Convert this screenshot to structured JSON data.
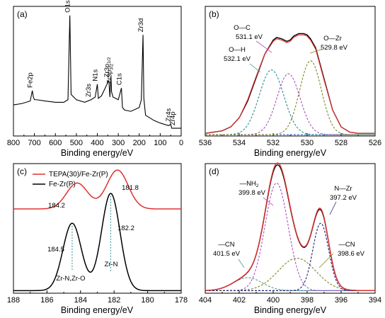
{
  "chart_data": [
    {
      "panel": "(a)",
      "type": "line",
      "xlabel": "Binding energy/eV",
      "ylabel": "",
      "xlim": [
        800,
        0
      ],
      "x_ticks": [
        800,
        700,
        600,
        500,
        400,
        300,
        200,
        100,
        0
      ],
      "series": [
        {
          "color": "#000000",
          "x": [
            800,
            760,
            720,
            710,
            705,
            700,
            690,
            650,
            600,
            560,
            540,
            531,
            525,
            500,
            460,
            430,
            410,
            400,
            395,
            380,
            345,
            340,
            335,
            332,
            325,
            300,
            285,
            280,
            270,
            240,
            200,
            190,
            182,
            178,
            170,
            130,
            100,
            60,
            50,
            45,
            40,
            35,
            30,
            25,
            20,
            15,
            10,
            5,
            0
          ],
          "y": [
            0.24,
            0.25,
            0.27,
            0.35,
            0.3,
            0.28,
            0.28,
            0.27,
            0.26,
            0.26,
            0.28,
            0.93,
            0.32,
            0.28,
            0.26,
            0.28,
            0.3,
            0.4,
            0.29,
            0.31,
            0.43,
            0.3,
            0.46,
            0.34,
            0.3,
            0.28,
            0.37,
            0.22,
            0.2,
            0.19,
            0.22,
            0.28,
            0.78,
            0.29,
            0.16,
            0.12,
            0.1,
            0.08,
            0.09,
            0.06,
            0.06,
            0.06,
            0.06,
            0.06,
            0.06,
            0.06,
            0.06,
            0.06,
            0.06
          ]
        }
      ],
      "annotations": [
        {
          "text": "Fe2p",
          "x": 710
        },
        {
          "text": "O1s",
          "x": 531
        },
        {
          "text": "Zr3s",
          "x": 432
        },
        {
          "text": "N1s",
          "x": 400
        },
        {
          "text": "Zr3p",
          "sub": "3/2",
          "x": 333
        },
        {
          "text": "Zr3p",
          "sub": "1/2",
          "x": 345
        },
        {
          "text": "C1s",
          "x": 285
        },
        {
          "text": "Zr3d",
          "x": 182
        },
        {
          "text": "Zr4s",
          "x": 51
        },
        {
          "text": "Zr4p",
          "x": 30
        }
      ]
    },
    {
      "panel": "(b)",
      "type": "line",
      "xlabel": "Binding energy/eV",
      "ylabel": "",
      "xlim": [
        536,
        526
      ],
      "x_ticks": [
        536,
        534,
        532,
        530,
        528,
        526
      ],
      "series": [
        {
          "role": "raw",
          "color": "#000000",
          "x": [
            536,
            535,
            534.5,
            534,
            533.5,
            533,
            532.5,
            532,
            531.8,
            531.5,
            531.2,
            531,
            530.8,
            530.5,
            530.2,
            530,
            529.8,
            529.5,
            529,
            528.5,
            528,
            527.5,
            527,
            526
          ],
          "y": [
            0.02,
            0.04,
            0.07,
            0.14,
            0.27,
            0.45,
            0.63,
            0.74,
            0.76,
            0.75,
            0.73,
            0.74,
            0.77,
            0.79,
            0.79,
            0.78,
            0.75,
            0.68,
            0.44,
            0.2,
            0.07,
            0.03,
            0.02,
            0.02
          ]
        },
        {
          "role": "fit",
          "color": "#e03030",
          "x": [
            536,
            535,
            534.5,
            534,
            533.5,
            533,
            532.5,
            532,
            531.8,
            531.5,
            531.2,
            531,
            530.8,
            530.5,
            530.2,
            530,
            529.8,
            529.5,
            529,
            528.5,
            528,
            527.5,
            527,
            526
          ],
          "y": [
            0.02,
            0.04,
            0.07,
            0.14,
            0.28,
            0.46,
            0.63,
            0.73,
            0.75,
            0.74,
            0.72,
            0.73,
            0.76,
            0.78,
            0.78,
            0.77,
            0.74,
            0.67,
            0.43,
            0.2,
            0.07,
            0.03,
            0.02,
            0.02
          ]
        },
        {
          "role": "O-H",
          "color": "#2a8f8f",
          "center": 532.1,
          "height": 0.5,
          "fwhm": 1.7
        },
        {
          "role": "O-C",
          "color": "#b050c0",
          "center": 531.1,
          "height": 0.47,
          "fwhm": 1.6
        },
        {
          "role": "O-Zr",
          "color": "#7a8a20",
          "center": 529.8,
          "height": 0.57,
          "fwhm": 1.5
        },
        {
          "role": "baseline",
          "color": "#2050c0",
          "y": 0.01
        }
      ],
      "annotations": [
        {
          "line1": "O—C",
          "line2": "531.1 eV"
        },
        {
          "line1": "O—H",
          "line2": "532.1 eV"
        },
        {
          "line1": "O—Zr",
          "line2": "529.8 eV"
        }
      ]
    },
    {
      "panel": "(c)",
      "type": "line",
      "xlabel": "Binding energy/eV",
      "ylabel": "",
      "xlim": [
        188,
        178
      ],
      "x_ticks": [
        188,
        186,
        184,
        182,
        180,
        178
      ],
      "legend": [
        {
          "label": "TEPA(30)/Fe-Zr(P)",
          "color": "#e03030"
        },
        {
          "label": "Fe-Zr(P)",
          "color": "#000000"
        }
      ],
      "series": [
        {
          "name": "TEPA(30)/Fe-Zr(P)",
          "color": "#e03030",
          "peaks": [
            {
              "center": 184.2,
              "height": 0.2,
              "fwhm": 1.5
            },
            {
              "center": 181.8,
              "height": 0.3,
              "fwhm": 1.5
            }
          ],
          "offset": 0.65
        },
        {
          "name": "Fe-Zr(P)",
          "color": "#000000",
          "peaks": [
            {
              "center": 184.5,
              "height": 0.52,
              "fwhm": 1.3
            },
            {
              "center": 182.2,
              "height": 0.75,
              "fwhm": 1.3
            }
          ],
          "offset": 0.02
        }
      ],
      "annotations": [
        {
          "text": "184.2"
        },
        {
          "text": "181.8"
        },
        {
          "text": "184.5"
        },
        {
          "text": "182.2"
        },
        {
          "text": "Zr-N,Zr-O"
        },
        {
          "text": "Zr-N"
        }
      ]
    },
    {
      "panel": "(d)",
      "type": "line",
      "xlabel": "Binding energy/eV",
      "ylabel": "",
      "xlim": [
        404,
        394
      ],
      "x_ticks": [
        404,
        402,
        400,
        398,
        396,
        394
      ],
      "series": [
        {
          "role": "-CN 401.5",
          "color": "#5a9a7a",
          "center": 401.5,
          "height": 0.1,
          "fwhm": 2.0
        },
        {
          "role": "-NH2",
          "color": "#b050c0",
          "center": 399.8,
          "height": 0.83,
          "fwhm": 1.6
        },
        {
          "role": "-CN 398.6",
          "color": "#7a8a20",
          "center": 398.6,
          "height": 0.25,
          "fwhm": 2.6
        },
        {
          "role": "N-Zr",
          "color": "#202070",
          "center": 397.2,
          "height": 0.52,
          "fwhm": 1.1
        },
        {
          "role": "baseline",
          "color": "#2050c0",
          "y": 0.02
        }
      ],
      "annotations": [
        {
          "line1": "—NH",
          "sub": "2",
          "line2": "399.8 eV"
        },
        {
          "line1": "N—Zr",
          "line2": "397.2 eV"
        },
        {
          "line1": "—CN",
          "line2": "401.5 eV"
        },
        {
          "line1": "—CN",
          "line2": "398.6 eV"
        }
      ]
    }
  ]
}
